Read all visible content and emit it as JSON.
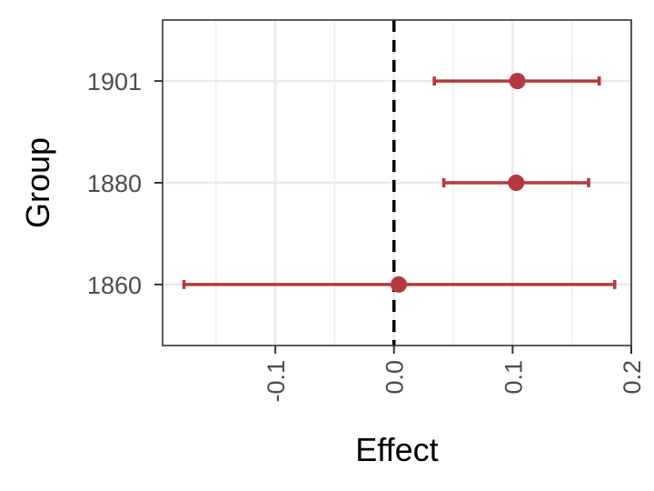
{
  "chart_data": {
    "type": "scatter",
    "subtype": "forest-plot",
    "title": "",
    "xlabel": "Effect",
    "ylabel": "Group",
    "xlim": [
      -0.195,
      0.2
    ],
    "x_ticks": [
      -0.1,
      0.0,
      0.1,
      0.2
    ],
    "x_tick_labels": [
      "-0.1",
      "0.0",
      "0.1",
      "0.2"
    ],
    "categories": [
      "1860",
      "1880",
      "1901"
    ],
    "series": [
      {
        "points": [
          {
            "group": "1860",
            "estimate": 0.004,
            "lower": -0.177,
            "upper": 0.186
          },
          {
            "group": "1880",
            "estimate": 0.103,
            "lower": 0.042,
            "upper": 0.164
          },
          {
            "group": "1901",
            "estimate": 0.104,
            "lower": 0.034,
            "upper": 0.173
          }
        ]
      }
    ],
    "reference_line": {
      "x": 0,
      "style": "dashed"
    },
    "grid": true,
    "legend": "none",
    "colors": {
      "point": "#b5393d",
      "reference": "#000000",
      "grid": "#ebebeb",
      "panel_border": "#333333"
    }
  }
}
